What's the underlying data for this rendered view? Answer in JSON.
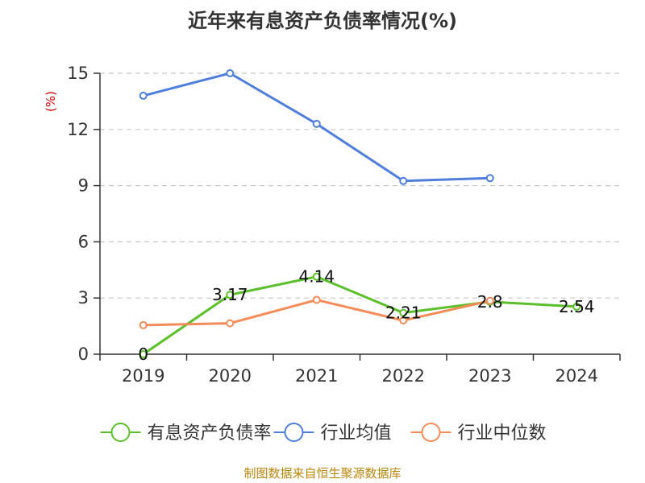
{
  "chart_data": {
    "type": "line",
    "title": "近年来有息资产负债率情况(%)",
    "ylabel": "(%)",
    "xlabel": "",
    "categories": [
      "2019",
      "2020",
      "2021",
      "2022",
      "2023",
      "2024"
    ],
    "ylim": [
      0,
      15
    ],
    "yticks": [
      0,
      3,
      6,
      9,
      12,
      15
    ],
    "grid": true,
    "legend_position": "bottom",
    "series": [
      {
        "name": "有息资产负债率",
        "color": "#5cc02c",
        "values": [
          0,
          3.17,
          4.14,
          2.21,
          2.8,
          2.54
        ],
        "show_labels": true
      },
      {
        "name": "行业均值",
        "color": "#4f7fdb",
        "values": [
          13.8,
          15.0,
          12.3,
          9.25,
          9.4,
          null
        ],
        "show_labels": false
      },
      {
        "name": "行业中位数",
        "color": "#f28c58",
        "values": [
          1.55,
          1.65,
          2.9,
          1.8,
          2.85,
          null
        ],
        "show_labels": false
      }
    ],
    "source": "制图数据来自恒生聚源数据库"
  }
}
